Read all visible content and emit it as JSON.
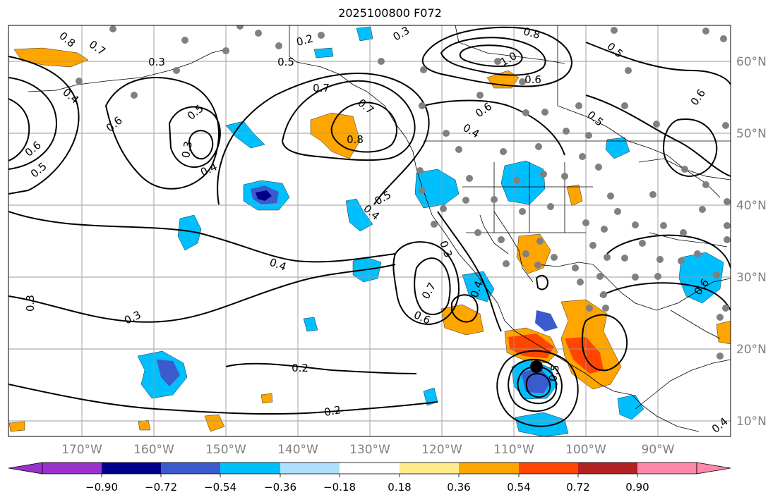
{
  "title": "2025100800 F072",
  "map": {
    "projection": "Mercator",
    "lon_range": [
      "180°W",
      "80°W"
    ],
    "lat_range": [
      "8°N",
      "65°N"
    ],
    "lon_labels": [
      "170°W",
      "160°W",
      "150°W",
      "140°W",
      "130°W",
      "120°W",
      "110°W",
      "100°W",
      "90°W"
    ],
    "lat_labels": [
      "10°N",
      "20°N",
      "30°N",
      "40°N",
      "50°N",
      "60°N"
    ],
    "gridlines": true,
    "storm_marker": "hurricane center off southwest Mexico",
    "contour_labels": [
      "0.8",
      "0.7",
      "0.3",
      "0.2",
      "0.3",
      "0.8",
      "1.0",
      "0.5",
      "0.6",
      "0.5",
      "0.4",
      "0.6",
      "0.5",
      "0.4",
      "0.6",
      "0.7",
      "0.3",
      "0.5",
      "0.3",
      "0.4",
      "0.6",
      "0.5",
      "0.7",
      "0.6",
      "0.8",
      "0.5",
      "0.4",
      "0.4",
      "0.3",
      "0.3",
      "0.6",
      "0.4",
      "0.7",
      "0.5",
      "0.6",
      "0.2",
      "0.2",
      "0.4"
    ],
    "contour_color": "#000000",
    "land_marker_color": "#808080"
  },
  "colorbar": {
    "ticks": [
      "−0.90",
      "−0.72",
      "−0.54",
      "−0.36",
      "−0.18",
      "0.18",
      "0.36",
      "0.54",
      "0.72",
      "0.90"
    ],
    "colors": [
      "#9932cc",
      "#00008b",
      "#3b5bcd",
      "#00bfff",
      "#ade0ff",
      "#ffffff",
      "#ffeb8a",
      "#ffa500",
      "#ff4500",
      "#b22222",
      "#ff88aa"
    ]
  }
}
